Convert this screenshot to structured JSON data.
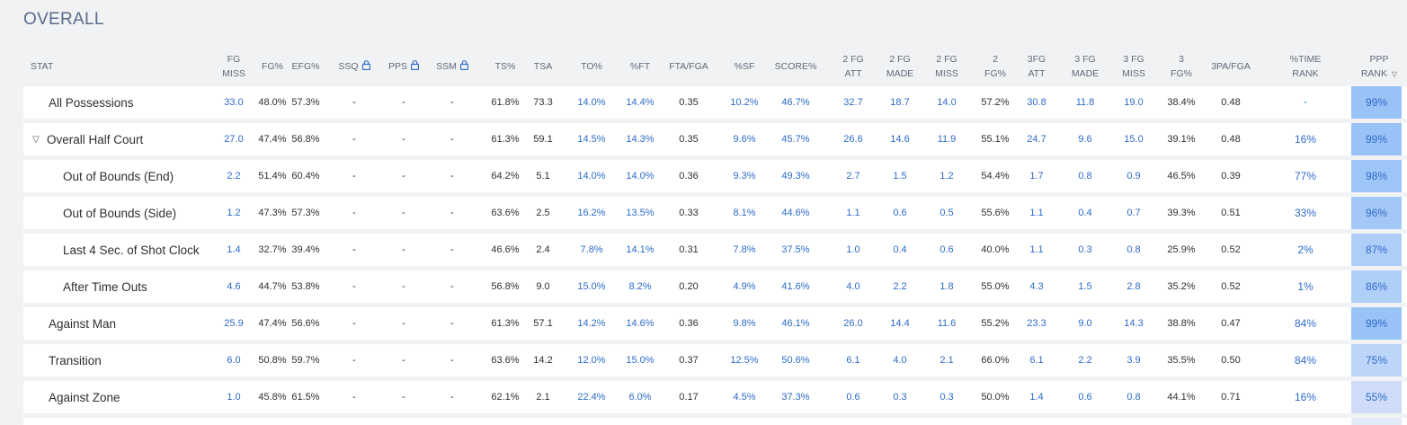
{
  "section_title": "OVERALL",
  "headers": [
    {
      "l1": "STAT",
      "l2": ""
    },
    {
      "l1": "FG",
      "l2": "MISS"
    },
    {
      "l1": "FG%",
      "l2": ""
    },
    {
      "l1": "EFG%",
      "l2": ""
    },
    {
      "l1": "SSQ",
      "l2": "",
      "locked": true
    },
    {
      "l1": "PPS",
      "l2": "",
      "locked": true
    },
    {
      "l1": "SSM",
      "l2": "",
      "locked": true
    },
    {
      "l1": "TS%",
      "l2": ""
    },
    {
      "l1": "TSA",
      "l2": ""
    },
    {
      "l1": "TO%",
      "l2": ""
    },
    {
      "l1": "%FT",
      "l2": ""
    },
    {
      "l1": "FTA/FGA",
      "l2": ""
    },
    {
      "l1": "%SF",
      "l2": ""
    },
    {
      "l1": "SCORE%",
      "l2": ""
    },
    {
      "l1": "2 FG",
      "l2": "ATT"
    },
    {
      "l1": "2 FG",
      "l2": "MADE"
    },
    {
      "l1": "2 FG",
      "l2": "MISS"
    },
    {
      "l1": "2",
      "l2": "FG%"
    },
    {
      "l1": "3FG",
      "l2": "ATT"
    },
    {
      "l1": "3 FG",
      "l2": "MADE"
    },
    {
      "l1": "3 FG",
      "l2": "MISS"
    },
    {
      "l1": "3",
      "l2": "FG%"
    },
    {
      "l1": "3PA/FGA",
      "l2": ""
    },
    {
      "l1": "%TIME",
      "l2": "RANK"
    },
    {
      "l1": "PPP",
      "l2": "RANK",
      "sorted": true
    }
  ],
  "rows": [
    {
      "name": "All Possessions",
      "indent": 1,
      "cells": [
        "33.0",
        "48.0%",
        "57.3%",
        "-",
        "-",
        "-",
        "61.8%",
        "73.3",
        "14.0%",
        "14.4%",
        "0.35",
        "10.2%",
        "46.7%",
        "32.7",
        "18.7",
        "14.0",
        "57.2%",
        "30.8",
        "11.8",
        "19.0",
        "38.4%",
        "0.48",
        "-",
        "99%"
      ]
    },
    {
      "name": "Overall Half Court",
      "indent": 1,
      "expandable": true,
      "toggle": "▽",
      "cells": [
        "27.0",
        "47.4%",
        "56.8%",
        "-",
        "-",
        "-",
        "61.3%",
        "59.1",
        "14.5%",
        "14.3%",
        "0.35",
        "9.6%",
        "45.7%",
        "26.6",
        "14.6",
        "11.9",
        "55.1%",
        "24.7",
        "9.6",
        "15.0",
        "39.1%",
        "0.48",
        "16%",
        "99%"
      ]
    },
    {
      "name": "Out of Bounds (End)",
      "indent": 2,
      "cells": [
        "2.2",
        "51.4%",
        "60.4%",
        "-",
        "-",
        "-",
        "64.2%",
        "5.1",
        "14.0%",
        "14.0%",
        "0.36",
        "9.3%",
        "49.3%",
        "2.7",
        "1.5",
        "1.2",
        "54.4%",
        "1.7",
        "0.8",
        "0.9",
        "46.5%",
        "0.39",
        "77%",
        "98%"
      ]
    },
    {
      "name": "Out of Bounds (Side)",
      "indent": 2,
      "cells": [
        "1.2",
        "47.3%",
        "57.3%",
        "-",
        "-",
        "-",
        "63.6%",
        "2.5",
        "16.2%",
        "13.5%",
        "0.33",
        "8.1%",
        "44.6%",
        "1.1",
        "0.6",
        "0.5",
        "55.6%",
        "1.1",
        "0.4",
        "0.7",
        "39.3%",
        "0.51",
        "33%",
        "96%"
      ]
    },
    {
      "name": "Last 4 Sec. of Shot Clock",
      "indent": 2,
      "cells": [
        "1.4",
        "32.7%",
        "39.4%",
        "-",
        "-",
        "-",
        "46.6%",
        "2.4",
        "7.8%",
        "14.1%",
        "0.31",
        "7.8%",
        "37.5%",
        "1.0",
        "0.4",
        "0.6",
        "40.0%",
        "1.1",
        "0.3",
        "0.8",
        "25.9%",
        "0.52",
        "2%",
        "87%"
      ]
    },
    {
      "name": "After Time Outs",
      "indent": 2,
      "cells": [
        "4.6",
        "44.7%",
        "53.8%",
        "-",
        "-",
        "-",
        "56.8%",
        "9.0",
        "15.0%",
        "8.2%",
        "0.20",
        "4.9%",
        "41.6%",
        "4.0",
        "2.2",
        "1.8",
        "55.0%",
        "4.3",
        "1.5",
        "2.8",
        "35.2%",
        "0.52",
        "1%",
        "86%"
      ]
    },
    {
      "name": "Against Man",
      "indent": 1,
      "cells": [
        "25.9",
        "47.4%",
        "56.6%",
        "-",
        "-",
        "-",
        "61.3%",
        "57.1",
        "14.2%",
        "14.6%",
        "0.36",
        "9.8%",
        "46.1%",
        "26.0",
        "14.4",
        "11.6",
        "55.2%",
        "23.3",
        "9.0",
        "14.3",
        "38.8%",
        "0.47",
        "84%",
        "99%"
      ]
    },
    {
      "name": "Transition",
      "indent": 1,
      "cells": [
        "6.0",
        "50.8%",
        "59.7%",
        "-",
        "-",
        "-",
        "63.6%",
        "14.2",
        "12.0%",
        "15.0%",
        "0.37",
        "12.5%",
        "50.6%",
        "6.1",
        "4.0",
        "2.1",
        "66.0%",
        "6.1",
        "2.2",
        "3.9",
        "35.5%",
        "0.50",
        "84%",
        "75%"
      ]
    },
    {
      "name": "Against Zone",
      "indent": 1,
      "cells": [
        "1.0",
        "45.8%",
        "61.5%",
        "-",
        "-",
        "-",
        "62.1%",
        "2.1",
        "22.4%",
        "6.0%",
        "0.17",
        "4.5%",
        "37.3%",
        "0.6",
        "0.3",
        "0.3",
        "50.0%",
        "1.4",
        "0.6",
        "0.8",
        "44.1%",
        "0.71",
        "16%",
        "55%"
      ]
    }
  ],
  "ppp_colors": [
    "#99c2f7",
    "#99c2f7",
    "#9ec5f7",
    "#a3c8f7",
    "#aecef8",
    "#b0cff8",
    "#99c2f7",
    "#bcd5f9",
    "#cfdcf9"
  ],
  "colors": {
    "accent": "#2e6bc7",
    "ppp_rank_bg": "#99c2f7"
  }
}
